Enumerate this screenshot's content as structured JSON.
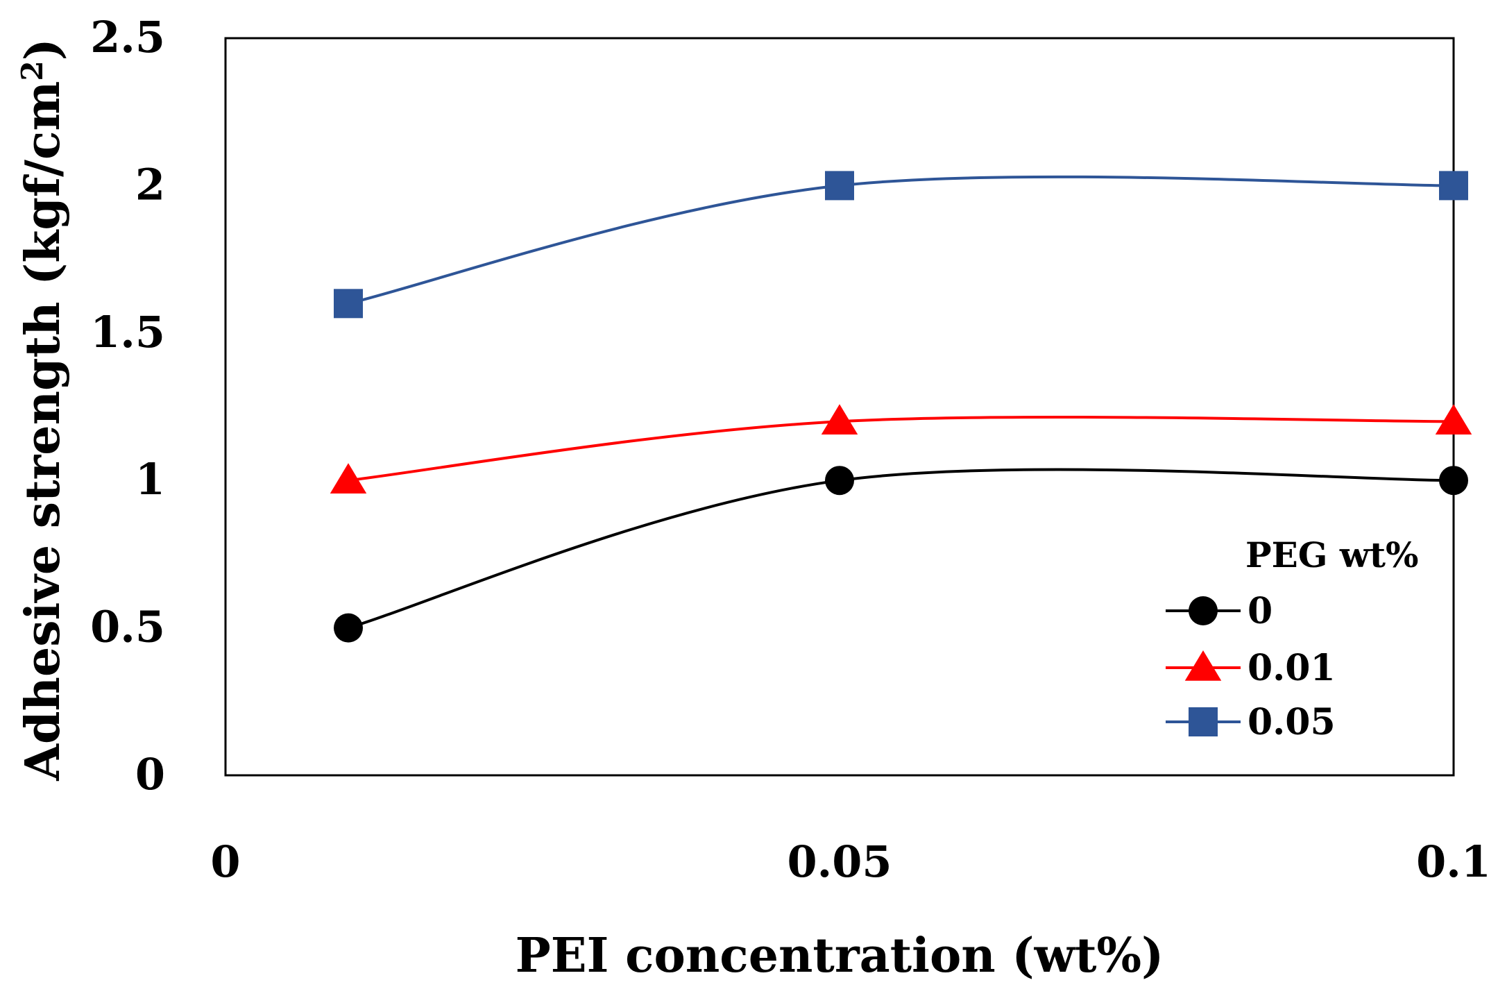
{
  "chart_data": {
    "type": "line",
    "title": "",
    "xlabel": "PEI concentration (wt%)",
    "ylabel_main": "Adhesive strength (kgf/cm",
    "ylabel_sup": "2",
    "ylabel_end": ")",
    "xlim": [
      0,
      0.1
    ],
    "ylim": [
      0,
      2.5
    ],
    "x_ticks": [
      "0",
      "0.05",
      "0.1"
    ],
    "x_tick_values": [
      0,
      0.05,
      0.1
    ],
    "y_ticks": [
      "0",
      "0.5",
      "1",
      "1.5",
      "2",
      "2.5"
    ],
    "y_tick_values": [
      0,
      0.5,
      1,
      1.5,
      2,
      2.5
    ],
    "x": [
      0.01,
      0.05,
      0.1
    ],
    "legend_title": "PEG wt%",
    "legend_position": "lower-right",
    "grid": false,
    "series": [
      {
        "name": "0",
        "values": [
          0.5,
          1.0,
          1.0
        ],
        "color": "#000000",
        "marker": "circle"
      },
      {
        "name": "0.01",
        "values": [
          1.0,
          1.2,
          1.2
        ],
        "color": "#ff0000",
        "marker": "triangle"
      },
      {
        "name": "0.05",
        "values": [
          1.6,
          2.0,
          2.0
        ],
        "color": "#2e5597",
        "marker": "square"
      }
    ]
  }
}
